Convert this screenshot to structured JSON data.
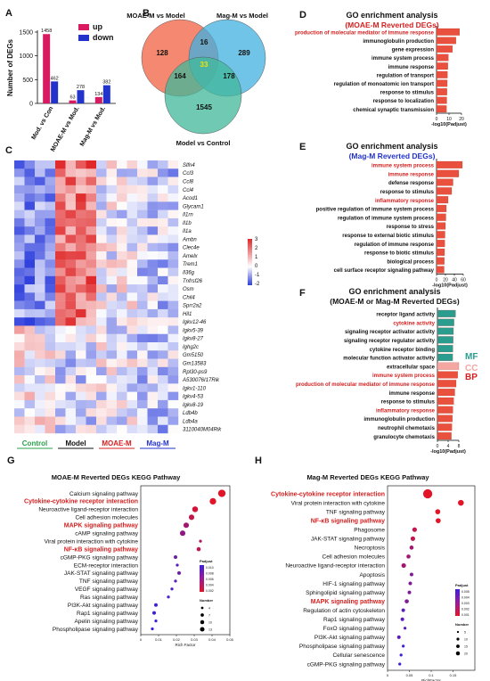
{
  "panel_letters": [
    "A",
    "B",
    "C",
    "D",
    "E",
    "F",
    "G",
    "H"
  ],
  "chart_data": [
    {
      "panel": "A",
      "type": "bar",
      "ylabel": "Number of DEGs",
      "ylim": [
        0,
        1500
      ],
      "yticks": [
        0,
        500,
        1000,
        1500
      ],
      "categories": [
        "Mod. vs Con",
        "MOAE-M vs Mod.",
        "Mag-M vs Mod."
      ],
      "series": [
        {
          "name": "up",
          "color": "#d81b60",
          "values": [
            1458,
            63,
            134
          ]
        },
        {
          "name": "down",
          "color": "#2233cc",
          "values": [
            462,
            278,
            382
          ]
        }
      ],
      "legend_position": "top-right"
    },
    {
      "panel": "B",
      "type": "venn",
      "sets": [
        {
          "name": "MOAE-M vs Model",
          "color": "#f06040"
        },
        {
          "name": "Mag-M vs Model",
          "color": "#40b0e0"
        },
        {
          "name": "Model vs Control",
          "color": "#40b89a"
        }
      ],
      "regions": {
        "a_only": "128",
        "ab_only": "16",
        "b_only": "289",
        "center": "33",
        "ac_only": "164",
        "bc_only": "178",
        "c_only": "1545"
      }
    },
    {
      "panel": "C",
      "type": "heatmap",
      "genes": [
        "Slfn4",
        "Ccl3",
        "Ccl8",
        "Ccl4",
        "Acod1",
        "Glycam1",
        "Il1rn",
        "Il1b",
        "Il1a",
        "Ambn",
        "Clec4e",
        "Amelx",
        "Trem1",
        "Il36g",
        "Tnfrsf26",
        "Osm",
        "Chil4",
        "Sprr2a2",
        "Hil1",
        "Igkv12-46",
        "Igkv5-39",
        "Igkv8-27",
        "Ighg2c",
        "Gm5150",
        "Gm13583",
        "Rpl30-ps9",
        "A530076I17Rik",
        "Igkv1-110",
        "Igkv4-53",
        "Igkv8-19",
        "Ldb4b",
        "Ldb4a",
        "3110040M04Rik"
      ],
      "groups": [
        {
          "label": "Control",
          "color": "#2aa24a"
        },
        {
          "label": "Model",
          "color": "#111111"
        },
        {
          "label": "MOAE-M",
          "color": "#d62020"
        },
        {
          "label": "Mag-M",
          "color": "#2233cc"
        }
      ],
      "colorbar": {
        "min": -2,
        "max": 3,
        "ticks": [
          "3",
          "2",
          "1",
          "0",
          "-1",
          "-2"
        ],
        "low": "#2e3fdc",
        "mid": "#ffffff",
        "high": "#e0282a"
      }
    },
    {
      "panel": "D",
      "type": "bar",
      "orientation": "horizontal",
      "title": "GO enrichment analysis",
      "subtitle": "(MOAE-M Reverted DEGs)",
      "subtitle_color": "#d62020",
      "xlabel": "-log10(Padjust)",
      "xlim": [
        0,
        20
      ],
      "xticks": [
        "0",
        "10",
        "20"
      ],
      "categories": [
        "production of molecular mediator of immune response",
        "immunoglobulin production",
        "gene expression",
        "immune system process",
        "immune response",
        "regulation of transport",
        "regulation of monoatomic ion transport",
        "response to stimulus",
        "response to localization",
        "chemical synaptic transmission"
      ],
      "values": [
        18.5,
        15.6,
        12.8,
        9.5,
        9.1,
        8.8,
        8.6,
        8.4,
        8.2,
        8.0
      ],
      "highlight": [
        0
      ]
    },
    {
      "panel": "E",
      "type": "bar",
      "orientation": "horizontal",
      "title": "GO enrichment analysis",
      "subtitle": "(Mag-M Reverted DEGs)",
      "subtitle_color": "#2233cc",
      "xlabel": "-log10(Padjust)",
      "xlim": [
        0,
        60
      ],
      "xticks": [
        "0",
        "20",
        "40",
        "60"
      ],
      "categories": [
        "immune system process",
        "immune response",
        "defense response",
        "response to stimulus",
        "inflammatory response",
        "positive regulation of immune system process",
        "regulation of immune system process",
        "response to stress",
        "response to external biotic stimulus",
        "regulation of immune response",
        "response to biotic stimulus",
        "biological process",
        "cell surface receptor signaling pathway"
      ],
      "values": [
        58,
        50,
        37,
        34,
        26,
        22,
        21,
        20,
        19,
        18.5,
        18,
        17.5,
        17
      ],
      "highlight": [
        0,
        1,
        4
      ]
    },
    {
      "panel": "F",
      "type": "bar",
      "orientation": "horizontal",
      "title": "GO enrichment analysis",
      "subtitle": "(MOAE-M or Mag-M Reverted DEGs)",
      "subtitle_color": "#111111",
      "xlabel": "-log10(Padjust)",
      "xlim": [
        0,
        8
      ],
      "xticks": [
        "0",
        "4",
        "8"
      ],
      "categories": [
        "receptor ligand activity",
        "cytokine activity",
        "signaling receptor activator activity",
        "signaling receptor regulator activity",
        "cytokine receptor binding",
        "molecular function activator activity",
        "extracellular space",
        "immune system process",
        "production of molecular mediator of immune response",
        "immune response",
        "response to stimulus",
        "inflammatory response",
        "immunoglobulin production",
        "neutrophil chemotaxis",
        "granulocyte chemotaxis"
      ],
      "values": [
        6.8,
        6.2,
        6.0,
        5.9,
        5.8,
        5.7,
        8.0,
        7.6,
        7.0,
        6.5,
        6.1,
        5.8,
        5.6,
        5.4,
        5.2
      ],
      "classes": [
        "MF",
        "MF",
        "MF",
        "MF",
        "MF",
        "MF",
        "CC",
        "BP",
        "BP",
        "BP",
        "BP",
        "BP",
        "BP",
        "BP",
        "BP"
      ],
      "class_colors": {
        "MF": "#2a9d8f",
        "CC": "#f4a6a0",
        "BP": "#e9503e"
      },
      "class_labels": [
        {
          "label": "MF",
          "color": "#2a9d8f"
        },
        {
          "label": "CC",
          "color": "#f4a6a0"
        },
        {
          "label": "BP",
          "color": "#d62020"
        }
      ],
      "highlight": [
        1,
        7,
        8,
        11
      ]
    },
    {
      "panel": "G",
      "type": "scatter",
      "title": "MOAE-M  Reverted DEGs KEGG Pathway",
      "xlabel": "Rich Factor",
      "xlim": [
        0,
        0.05
      ],
      "xticks": [
        "0",
        "0.01",
        "0.02",
        "0.03",
        "0.04",
        "0.05"
      ],
      "categories": [
        "Calcium signaling pathway",
        "Cytokine-cytokine receptor interaction",
        "Neuroactive ligand-receptor interaction",
        "Cell adhesion molecules",
        "MAPK signaling pathway",
        "cAMP signaling pathway",
        "Viral protein interaction with cytokine",
        "NF-κB signaling pathway",
        "cGMP-PKG signaling pathway",
        "ECM-receptor interaction",
        "JAK-STAT signaling pathway",
        "TNF signaling pathway",
        "VEGF signaling pathway",
        "Ras signaling pathway",
        "PI3K-Akt signaling pathway",
        "Rap1 signaling pathway",
        "Apelin signaling pathway",
        "Phospholipase signaling pathway"
      ],
      "x": [
        0.0455,
        0.0405,
        0.0305,
        0.0285,
        0.0255,
        0.0235,
        0.0335,
        0.0325,
        0.0195,
        0.0205,
        0.0215,
        0.0195,
        0.0175,
        0.0155,
        0.0085,
        0.0075,
        0.0085,
        0.0065
      ],
      "size": [
        13,
        10,
        8,
        7,
        7,
        7,
        2,
        4,
        3,
        2,
        3,
        2,
        2,
        2,
        3,
        3,
        2,
        2
      ],
      "padjust": [
        0.0,
        0.0,
        0.001,
        0.002,
        0.004,
        0.005,
        0.003,
        0.002,
        0.007,
        0.008,
        0.007,
        0.008,
        0.009,
        0.009,
        0.01,
        0.01,
        0.01,
        0.01
      ],
      "highlight": [
        1,
        4,
        7
      ],
      "legend_padjust": {
        "title": "Padjust",
        "ticks": [
          "0.010",
          "0.008",
          "0.006",
          "0.004",
          "0.002"
        ]
      },
      "legend_size": {
        "title": "Number",
        "values": [
          "4",
          "7",
          "10",
          "13"
        ]
      }
    },
    {
      "panel": "H",
      "type": "scatter",
      "title": "Mag-M Reverted DEGs KEGG Pathway",
      "xlabel": "RichFactor",
      "xlim": [
        0,
        0.2
      ],
      "xticks": [
        "0",
        "0.05",
        "0.1",
        "0.15"
      ],
      "categories": [
        "Cytokine-cytokine receptor interaction",
        "Viral protein interaction with cytokine",
        "TNF signaling pathway",
        "NF-κB signaling pathway",
        "Phagosome",
        "JAK-STAT signaling pathway",
        "Necroptosis",
        "Cell adhesion molecules",
        "Neuroactive ligand-receptor interaction",
        "Apoptosis",
        "HIF-1 signaling pathway",
        "Sphingolipid signaling pathway",
        "MAPK signaling pathway",
        "Regulation of actin cytoskeleton",
        "Rap1 signaling pathway",
        "FoxO signaling pathway",
        "PI3K-Akt signaling pathway",
        "Phospholipase  signaling pathway",
        "Cellular senescence",
        "cGMP-PKG signaling pathway"
      ],
      "x": [
        0.092,
        0.168,
        0.115,
        0.116,
        0.062,
        0.058,
        0.055,
        0.048,
        0.037,
        0.055,
        0.052,
        0.05,
        0.044,
        0.036,
        0.034,
        0.04,
        0.026,
        0.036,
        0.031,
        0.028
      ],
      "size": [
        20,
        8,
        6,
        6,
        5,
        5,
        4,
        4,
        5,
        3,
        3,
        3,
        4,
        3,
        3,
        2,
        3,
        2,
        2,
        2
      ],
      "padjust": [
        0.0,
        0.0,
        0.0,
        0.0,
        0.001,
        0.001,
        0.002,
        0.002,
        0.002,
        0.003,
        0.003,
        0.003,
        0.003,
        0.004,
        0.004,
        0.004,
        0.004,
        0.005,
        0.005,
        0.005
      ],
      "highlight": [
        0,
        3,
        12
      ],
      "legend_padjust": {
        "title": "Padjust",
        "ticks": [
          "0.005",
          "0.004",
          "0.003",
          "0.002",
          "0.001"
        ]
      },
      "legend_size": {
        "title": "Number",
        "values": [
          "5",
          "10",
          "15",
          "20"
        ]
      }
    }
  ]
}
